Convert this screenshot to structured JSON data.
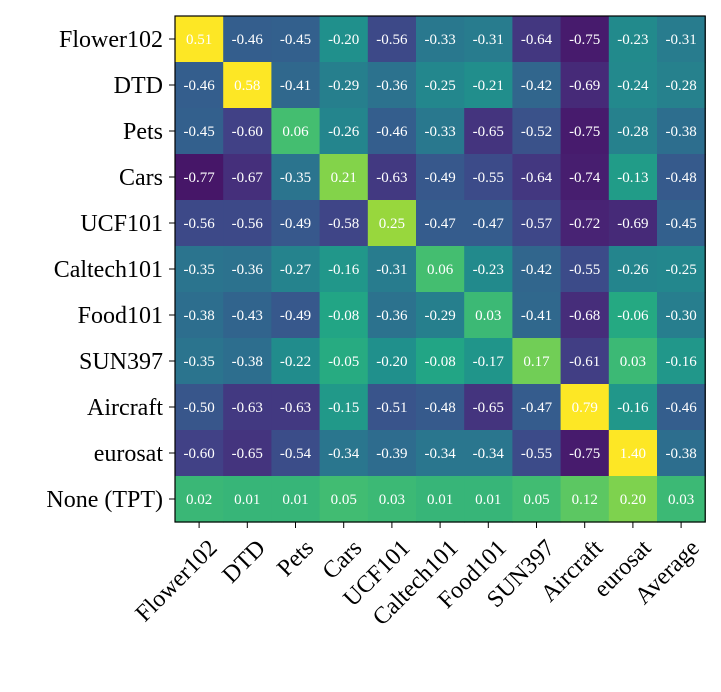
{
  "chart_data": {
    "type": "heatmap",
    "rows": [
      "Flower102",
      "DTD",
      "Pets",
      "Cars",
      "UCF101",
      "Caltech101",
      "Food101",
      "SUN397",
      "Aircraft",
      "eurosat",
      "None (TPT)"
    ],
    "columns": [
      "Flower102",
      "DTD",
      "Pets",
      "Cars",
      "UCF101",
      "Caltech101",
      "Food101",
      "SUN397",
      "Aircraft",
      "eurosat",
      "Average"
    ],
    "values": [
      [
        0.51,
        -0.46,
        -0.45,
        -0.2,
        -0.56,
        -0.33,
        -0.31,
        -0.64,
        -0.75,
        -0.23,
        -0.31
      ],
      [
        -0.46,
        0.58,
        -0.41,
        -0.29,
        -0.36,
        -0.25,
        -0.21,
        -0.42,
        -0.69,
        -0.24,
        -0.28
      ],
      [
        -0.45,
        -0.6,
        0.06,
        -0.26,
        -0.46,
        -0.33,
        -0.65,
        -0.52,
        -0.75,
        -0.28,
        -0.38
      ],
      [
        -0.77,
        -0.67,
        -0.35,
        0.21,
        -0.63,
        -0.49,
        -0.55,
        -0.64,
        -0.74,
        -0.13,
        -0.48
      ],
      [
        -0.56,
        -0.56,
        -0.49,
        -0.58,
        0.25,
        -0.47,
        -0.47,
        -0.57,
        -0.72,
        -0.69,
        -0.45
      ],
      [
        -0.35,
        -0.36,
        -0.27,
        -0.16,
        -0.31,
        0.06,
        -0.23,
        -0.42,
        -0.55,
        -0.26,
        -0.25
      ],
      [
        -0.38,
        -0.43,
        -0.49,
        -0.08,
        -0.36,
        -0.29,
        0.03,
        -0.41,
        -0.68,
        -0.06,
        -0.3
      ],
      [
        -0.35,
        -0.38,
        -0.22,
        -0.05,
        -0.2,
        -0.08,
        -0.17,
        0.17,
        -0.61,
        0.03,
        -0.16
      ],
      [
        -0.5,
        -0.63,
        -0.63,
        -0.15,
        -0.51,
        -0.48,
        -0.65,
        -0.47,
        0.79,
        -0.16,
        -0.46
      ],
      [
        -0.6,
        -0.65,
        -0.54,
        -0.34,
        -0.39,
        -0.34,
        -0.34,
        -0.55,
        -0.75,
        1.4,
        -0.38
      ],
      [
        0.02,
        0.01,
        0.01,
        0.05,
        0.03,
        0.01,
        0.01,
        0.05,
        0.12,
        0.2,
        0.03
      ]
    ],
    "labels": [
      [
        "0.51",
        "-0.46",
        "-0.45",
        "-0.20",
        "-0.56",
        "-0.33",
        "-0.31",
        "-0.64",
        "-0.75",
        "-0.23",
        "-0.31"
      ],
      [
        "-0.46",
        "0.58",
        "-0.41",
        "-0.29",
        "-0.36",
        "-0.25",
        "-0.21",
        "-0.42",
        "-0.69",
        "-0.24",
        "-0.28"
      ],
      [
        "-0.45",
        "-0.60",
        "0.06",
        "-0.26",
        "-0.46",
        "-0.33",
        "-0.65",
        "-0.52",
        "-0.75",
        "-0.28",
        "-0.38"
      ],
      [
        "-0.77",
        "-0.67",
        "-0.35",
        "0.21",
        "-0.63",
        "-0.49",
        "-0.55",
        "-0.64",
        "-0.74",
        "-0.13",
        "-0.48"
      ],
      [
        "-0.56",
        "-0.56",
        "-0.49",
        "-0.58",
        "0.25",
        "-0.47",
        "-0.47",
        "-0.57",
        "-0.72",
        "-0.69",
        "-0.45"
      ],
      [
        "-0.35",
        "-0.36",
        "-0.27",
        "-0.16",
        "-0.31",
        "0.06",
        "-0.23",
        "-0.42",
        "-0.55",
        "-0.26",
        "-0.25"
      ],
      [
        "-0.38",
        "-0.43",
        "-0.49",
        "-0.08",
        "-0.36",
        "-0.29",
        "0.03",
        "-0.41",
        "-0.68",
        "-0.06",
        "-0.30"
      ],
      [
        "-0.35",
        "-0.38",
        "-0.22",
        "-0.05",
        "-0.20",
        "-0.08",
        "-0.17",
        "0.17",
        "-0.61",
        "0.03",
        "-0.16"
      ],
      [
        "-0.50",
        "-0.63",
        "-0.63",
        "-0.15",
        "-0.51",
        "-0.48",
        "-0.65",
        "-0.47",
        "0.79",
        "-0.16",
        "-0.46"
      ],
      [
        "-0.60",
        "-0.65",
        "-0.54",
        "-0.34",
        "-0.39",
        "-0.34",
        "-0.34",
        "-0.55",
        "-0.75",
        "1.40",
        "-0.38"
      ],
      [
        "0.02",
        "0.01",
        "0.01",
        "0.05",
        "0.03",
        "0.01",
        "0.01",
        "0.05",
        "0.12",
        "0.20",
        "0.03"
      ]
    ],
    "colormap": "viridis",
    "highlight_color": "#fde725",
    "cell_text_color": "#ffffff"
  }
}
